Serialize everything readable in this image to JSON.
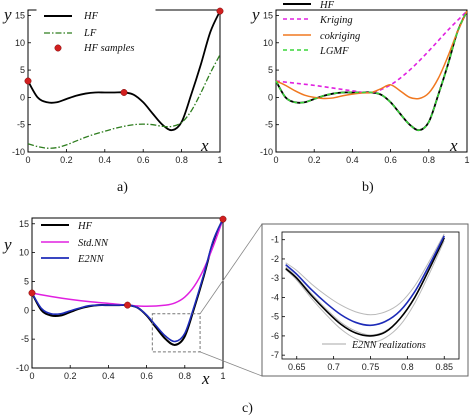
{
  "captions": {
    "a": "a)",
    "b": "b)",
    "c": "c)"
  },
  "chart_data": [
    {
      "id": "a",
      "type": "line",
      "xlabel": "x",
      "ylabel": "y",
      "xlim": [
        0,
        1
      ],
      "ylim": [
        -10,
        16
      ],
      "xticks": [
        "0",
        "0.2",
        "0.4",
        "0.6",
        "0.8",
        "1"
      ],
      "yticks": [
        "-10",
        "-5",
        "0",
        "5",
        "10",
        "15"
      ],
      "legend": {
        "placement": "top-left",
        "entries": [
          "HF",
          "LF",
          "HF samples"
        ]
      },
      "series": [
        {
          "name": "HF",
          "color": "#000000",
          "style": "solid",
          "x": [
            0,
            0.05,
            0.1,
            0.15,
            0.2,
            0.25,
            0.3,
            0.35,
            0.4,
            0.45,
            0.5,
            0.55,
            0.6,
            0.65,
            0.7,
            0.75,
            0.8,
            0.85,
            0.9,
            0.95,
            1
          ],
          "y": [
            3.0,
            0.0,
            -0.9,
            -0.9,
            -0.3,
            0.3,
            0.7,
            0.9,
            0.9,
            0.9,
            0.9,
            0.5,
            -0.9,
            -3.0,
            -5.0,
            -6.0,
            -4.5,
            0.5,
            6.0,
            12.0,
            15.8
          ]
        },
        {
          "name": "LF",
          "color": "#2e7d1e",
          "style": "dashdot",
          "x": [
            0,
            0.05,
            0.1,
            0.15,
            0.2,
            0.25,
            0.3,
            0.35,
            0.4,
            0.45,
            0.5,
            0.55,
            0.6,
            0.65,
            0.7,
            0.75,
            0.8,
            0.85,
            0.9,
            0.95,
            1
          ],
          "y": [
            -8.5,
            -9.0,
            -9.3,
            -9.2,
            -8.7,
            -8.0,
            -7.3,
            -6.7,
            -6.2,
            -5.7,
            -5.3,
            -5.0,
            -4.9,
            -5.0,
            -5.3,
            -5.3,
            -4.6,
            -2.5,
            0.8,
            4.5,
            7.8
          ]
        },
        {
          "name": "HF samples",
          "color": "#d21f1f",
          "style": "markers",
          "x": [
            0,
            0.5,
            1
          ],
          "y": [
            3.0,
            0.9,
            15.8
          ]
        }
      ]
    },
    {
      "id": "b",
      "type": "line",
      "xlabel": "x",
      "ylabel": "y",
      "xlim": [
        0,
        1
      ],
      "ylim": [
        -10,
        16
      ],
      "xticks": [
        "0",
        "0.2",
        "0.4",
        "0.6",
        "0.8",
        "1"
      ],
      "yticks": [
        "-10",
        "-5",
        "0",
        "5",
        "10",
        "15"
      ],
      "legend": {
        "placement": "top-left",
        "entries": [
          "HF",
          "Kriging",
          "cokriging",
          "LGMF"
        ]
      },
      "series": [
        {
          "name": "HF",
          "color": "#000000",
          "style": "solid",
          "x": [
            0,
            0.05,
            0.1,
            0.15,
            0.2,
            0.25,
            0.3,
            0.35,
            0.4,
            0.45,
            0.5,
            0.55,
            0.6,
            0.65,
            0.7,
            0.75,
            0.8,
            0.85,
            0.9,
            0.95,
            1
          ],
          "y": [
            3.0,
            0.0,
            -0.9,
            -0.9,
            -0.3,
            0.3,
            0.7,
            0.9,
            0.9,
            0.9,
            0.9,
            0.5,
            -0.9,
            -3.0,
            -5.0,
            -6.0,
            -4.5,
            0.5,
            6.0,
            12.0,
            15.8
          ]
        },
        {
          "name": "Kriging",
          "color": "#e020e0",
          "style": "dashed",
          "x": [
            0,
            0.1,
            0.2,
            0.3,
            0.4,
            0.5,
            0.6,
            0.7,
            0.8,
            0.9,
            1
          ],
          "y": [
            3.0,
            2.6,
            2.2,
            1.7,
            1.2,
            0.9,
            2.3,
            5.0,
            8.5,
            12.3,
            15.8
          ]
        },
        {
          "name": "cokriging",
          "color": "#f07820",
          "style": "solid",
          "x": [
            0,
            0.05,
            0.1,
            0.15,
            0.2,
            0.25,
            0.3,
            0.35,
            0.4,
            0.45,
            0.5,
            0.55,
            0.6,
            0.65,
            0.7,
            0.75,
            0.8,
            0.85,
            0.9,
            0.95,
            1
          ],
          "y": [
            3.0,
            2.2,
            1.2,
            0.4,
            0.0,
            -0.2,
            -0.1,
            0.3,
            0.6,
            0.8,
            0.9,
            1.6,
            2.3,
            1.2,
            0.0,
            -0.2,
            0.8,
            3.5,
            7.5,
            12.0,
            15.8
          ]
        },
        {
          "name": "LGMF",
          "color": "#3ad63a",
          "style": "dashed",
          "x": [
            0,
            0.05,
            0.1,
            0.15,
            0.2,
            0.25,
            0.3,
            0.35,
            0.4,
            0.45,
            0.5,
            0.55,
            0.6,
            0.65,
            0.7,
            0.75,
            0.8,
            0.85,
            0.9,
            0.95,
            1
          ],
          "y": [
            3.0,
            0.0,
            -0.9,
            -0.9,
            -0.3,
            0.3,
            0.7,
            0.9,
            0.9,
            0.9,
            0.9,
            0.5,
            -0.9,
            -3.0,
            -5.0,
            -6.0,
            -4.5,
            0.5,
            6.0,
            12.0,
            15.8
          ]
        }
      ]
    },
    {
      "id": "c",
      "type": "line",
      "xlabel": "x",
      "ylabel": "y",
      "xlim": [
        0,
        1
      ],
      "ylim": [
        -10,
        16
      ],
      "xticks": [
        "0",
        "0.2",
        "0.4",
        "0.6",
        "0.8",
        "1"
      ],
      "yticks": [
        "-10",
        "-5",
        "0",
        "5",
        "10",
        "15"
      ],
      "legend": {
        "placement": "top-left",
        "entries": [
          "HF",
          "Std.NN",
          "E2NN"
        ]
      },
      "zoom_region": {
        "x": [
          0.63,
          0.88
        ],
        "y": [
          -7.2,
          -0.6
        ]
      },
      "series": [
        {
          "name": "HF",
          "color": "#000000",
          "style": "solid",
          "x": [
            0,
            0.05,
            0.1,
            0.15,
            0.2,
            0.25,
            0.3,
            0.35,
            0.4,
            0.45,
            0.5,
            0.55,
            0.6,
            0.65,
            0.7,
            0.75,
            0.8,
            0.85,
            0.9,
            0.95,
            1
          ],
          "y": [
            3.0,
            0.0,
            -0.9,
            -0.9,
            -0.3,
            0.3,
            0.7,
            0.9,
            0.9,
            0.9,
            0.9,
            0.5,
            -0.9,
            -3.0,
            -5.0,
            -6.0,
            -4.5,
            0.5,
            6.0,
            12.0,
            15.8
          ]
        },
        {
          "name": "Std.NN",
          "color": "#e020e0",
          "style": "solid",
          "x": [
            0,
            0.1,
            0.2,
            0.3,
            0.4,
            0.5,
            0.6,
            0.7,
            0.75,
            0.8,
            0.85,
            0.9,
            0.95,
            1
          ],
          "y": [
            3.0,
            2.4,
            1.9,
            1.5,
            1.2,
            0.9,
            0.7,
            0.9,
            1.3,
            2.3,
            4.2,
            7.2,
            11.2,
            15.8
          ]
        },
        {
          "name": "E2NN",
          "color": "#1d2bb8",
          "style": "solid",
          "x": [
            0,
            0.05,
            0.1,
            0.15,
            0.2,
            0.25,
            0.3,
            0.35,
            0.4,
            0.45,
            0.5,
            0.55,
            0.6,
            0.65,
            0.7,
            0.75,
            0.8,
            0.85,
            0.9,
            0.95,
            1
          ],
          "y": [
            3.0,
            0.3,
            -0.6,
            -0.6,
            -0.1,
            0.4,
            0.8,
            0.9,
            0.9,
            0.9,
            0.9,
            0.5,
            -0.8,
            -2.7,
            -4.5,
            -5.4,
            -4.0,
            0.8,
            6.3,
            12.2,
            15.8
          ]
        },
        {
          "name": "HF samples",
          "color": "#d21f1f",
          "style": "markers",
          "x": [
            0,
            0.5,
            1
          ],
          "y": [
            3.0,
            0.9,
            15.8
          ]
        }
      ]
    },
    {
      "id": "c-inset",
      "type": "line",
      "xlim": [
        0.63,
        0.87
      ],
      "ylim": [
        -7.2,
        -0.6
      ],
      "xticks": [
        "0.65",
        "0.7",
        "0.75",
        "0.8",
        "0.85"
      ],
      "yticks": [
        "-1",
        "-2",
        "-3",
        "-4",
        "-5",
        "-6",
        "-7"
      ],
      "legend": {
        "placement": "bottom",
        "entries": [
          "E2NN realizations"
        ]
      },
      "series": [
        {
          "name": "HF",
          "color": "#000000",
          "style": "solid",
          "x": [
            0.635,
            0.65,
            0.67,
            0.69,
            0.71,
            0.73,
            0.75,
            0.77,
            0.79,
            0.81,
            0.83,
            0.85
          ],
          "y": [
            -2.5,
            -3.0,
            -3.9,
            -4.7,
            -5.4,
            -5.85,
            -6.0,
            -5.8,
            -5.1,
            -4.0,
            -2.5,
            -0.9
          ]
        },
        {
          "name": "E2NN",
          "color": "#1d2bb8",
          "style": "solid",
          "x": [
            0.635,
            0.65,
            0.67,
            0.69,
            0.71,
            0.73,
            0.75,
            0.77,
            0.79,
            0.81,
            0.83,
            0.85
          ],
          "y": [
            -2.3,
            -2.8,
            -3.6,
            -4.3,
            -4.9,
            -5.3,
            -5.45,
            -5.25,
            -4.7,
            -3.7,
            -2.3,
            -0.8
          ]
        },
        {
          "name": "E2NN realizations",
          "color": "#b9b9b9",
          "style": "solid",
          "x": [
            0.635,
            0.65,
            0.67,
            0.69,
            0.71,
            0.73,
            0.75,
            0.77,
            0.79,
            0.81,
            0.83,
            0.85
          ],
          "y": [
            -2.2,
            -2.6,
            -3.3,
            -3.9,
            -4.4,
            -4.75,
            -4.9,
            -4.75,
            -4.3,
            -3.4,
            -2.1,
            -0.7
          ]
        },
        {
          "name": "E2NN realizations",
          "color": "#b9b9b9",
          "style": "solid",
          "x": [
            0.635,
            0.65,
            0.67,
            0.69,
            0.71,
            0.73,
            0.75,
            0.77,
            0.79,
            0.81,
            0.83,
            0.85
          ],
          "y": [
            -2.4,
            -2.95,
            -3.8,
            -4.6,
            -5.3,
            -5.75,
            -5.95,
            -5.75,
            -5.1,
            -4.0,
            -2.5,
            -0.9
          ]
        },
        {
          "name": "E2NN realizations",
          "color": "#b9b9b9",
          "style": "solid",
          "x": [
            0.635,
            0.65,
            0.67,
            0.69,
            0.71,
            0.73,
            0.75,
            0.77,
            0.79,
            0.81,
            0.83,
            0.85
          ],
          "y": [
            -2.55,
            -3.1,
            -4.05,
            -4.9,
            -5.65,
            -6.15,
            -6.35,
            -6.1,
            -5.45,
            -4.3,
            -2.75,
            -1.05
          ]
        }
      ]
    }
  ]
}
